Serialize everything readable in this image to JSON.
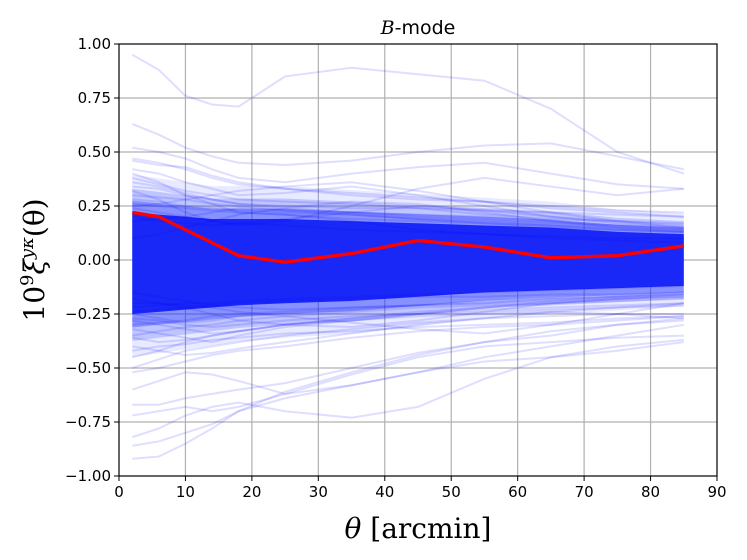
{
  "chart_data": {
    "type": "line",
    "title": "B-mode",
    "title_parts": {
      "var": "B",
      "rest": "-mode"
    },
    "xlabel": "θ [arcmin]",
    "xlabel_parts": {
      "sym": "θ",
      "rest": " [arcmin]"
    },
    "ylabel": "10⁹ξ^{yκ}(θ)",
    "ylabel_parts": {
      "base": "10",
      "exp": "9",
      "xi": "ξ",
      "sup": "yκ",
      "arg": "(θ)"
    },
    "xlim": [
      0,
      90
    ],
    "ylim": [
      -1.0,
      1.0
    ],
    "grid": true,
    "x_ticks": [
      0,
      10,
      20,
      30,
      40,
      50,
      60,
      70,
      80,
      90
    ],
    "x_tick_labels": [
      "0",
      "10",
      "20",
      "30",
      "40",
      "50",
      "60",
      "70",
      "80",
      "90"
    ],
    "y_ticks": [
      -1.0,
      -0.75,
      -0.5,
      -0.25,
      0.0,
      0.25,
      0.5,
      0.75,
      1.0
    ],
    "y_tick_labels": [
      "−1.00",
      "−0.75",
      "−0.50",
      "−0.25",
      "0.00",
      "0.25",
      "0.50",
      "0.75",
      "1.00"
    ],
    "x": [
      2,
      6,
      10,
      14,
      18,
      25,
      35,
      45,
      55,
      65,
      75,
      85
    ],
    "band_envelope": {
      "upper": [
        0.22,
        0.21,
        0.2,
        0.19,
        0.19,
        0.19,
        0.18,
        0.17,
        0.16,
        0.15,
        0.13,
        0.12
      ],
      "lower": [
        -0.25,
        -0.24,
        -0.23,
        -0.22,
        -0.21,
        -0.2,
        -0.19,
        -0.17,
        -0.15,
        -0.14,
        -0.13,
        -0.12
      ]
    },
    "series": [
      {
        "role": "mean",
        "color": "#ff0000",
        "values": [
          0.22,
          0.2,
          0.14,
          0.08,
          0.02,
          -0.01,
          0.03,
          0.09,
          0.06,
          0.01,
          0.02,
          0.065
        ]
      }
    ],
    "background_lines": [
      [
        0.95,
        0.88,
        0.76,
        0.72,
        0.71,
        0.85,
        0.89,
        0.86,
        0.83,
        0.7,
        0.5,
        0.4
      ],
      [
        0.63,
        0.58,
        0.52,
        0.48,
        0.45,
        0.44,
        0.46,
        0.5,
        0.53,
        0.54,
        0.48,
        0.42
      ],
      [
        0.52,
        0.5,
        0.47,
        0.42,
        0.38,
        0.36,
        0.4,
        0.43,
        0.45,
        0.4,
        0.35,
        0.33
      ],
      [
        0.46,
        0.44,
        0.43,
        0.39,
        0.36,
        0.33,
        0.3,
        0.28,
        0.27,
        0.25,
        0.23,
        0.22
      ],
      [
        0.42,
        0.4,
        0.36,
        0.33,
        0.3,
        0.31,
        0.34,
        0.3,
        0.25,
        0.2,
        0.18,
        0.16
      ],
      [
        0.38,
        0.35,
        0.32,
        0.3,
        0.28,
        0.27,
        0.26,
        0.24,
        0.21,
        0.19,
        0.18,
        0.17
      ],
      [
        0.34,
        0.33,
        0.3,
        0.28,
        0.26,
        0.24,
        0.22,
        0.21,
        0.2,
        0.18,
        0.16,
        0.15
      ],
      [
        0.3,
        0.29,
        0.28,
        0.26,
        0.25,
        0.23,
        0.22,
        0.2,
        0.19,
        0.17,
        0.16,
        0.14
      ],
      [
        0.32,
        0.28,
        0.22,
        0.18,
        0.16,
        0.18,
        0.25,
        0.33,
        0.38,
        0.34,
        0.3,
        0.33
      ],
      [
        0.28,
        0.27,
        0.25,
        0.24,
        0.23,
        0.22,
        0.21,
        0.19,
        0.18,
        0.16,
        0.15,
        0.14
      ],
      [
        0.26,
        0.25,
        0.24,
        0.23,
        0.22,
        0.21,
        0.19,
        0.18,
        0.17,
        0.16,
        0.14,
        0.13
      ],
      [
        0.4,
        0.36,
        0.3,
        0.26,
        0.22,
        0.21,
        0.18,
        0.14,
        0.12,
        0.1,
        0.09,
        0.08
      ],
      [
        0.25,
        0.26,
        0.28,
        0.3,
        0.32,
        0.34,
        0.36,
        0.32,
        0.27,
        0.22,
        0.18,
        0.15
      ],
      [
        0.24,
        0.22,
        0.2,
        0.18,
        0.17,
        0.16,
        0.14,
        0.13,
        0.12,
        0.11,
        0.1,
        0.1
      ],
      [
        0.1,
        0.12,
        0.15,
        0.18,
        0.21,
        0.24,
        0.27,
        0.26,
        0.22,
        0.18,
        0.15,
        0.13
      ],
      [
        -0.25,
        -0.27,
        -0.29,
        -0.28,
        -0.26,
        -0.25,
        -0.23,
        -0.21,
        -0.2,
        -0.18,
        -0.17,
        -0.16
      ],
      [
        -0.28,
        -0.3,
        -0.32,
        -0.34,
        -0.33,
        -0.3,
        -0.27,
        -0.24,
        -0.22,
        -0.2,
        -0.18,
        -0.17
      ],
      [
        -0.32,
        -0.34,
        -0.36,
        -0.38,
        -0.35,
        -0.31,
        -0.28,
        -0.25,
        -0.22,
        -0.19,
        -0.17,
        -0.15
      ],
      [
        -0.36,
        -0.38,
        -0.37,
        -0.35,
        -0.33,
        -0.3,
        -0.27,
        -0.25,
        -0.23,
        -0.22,
        -0.21,
        -0.2
      ],
      [
        -0.4,
        -0.42,
        -0.44,
        -0.43,
        -0.41,
        -0.38,
        -0.34,
        -0.3,
        -0.27,
        -0.24,
        -0.22,
        -0.2
      ],
      [
        -0.3,
        -0.29,
        -0.28,
        -0.26,
        -0.25,
        -0.24,
        -0.22,
        -0.21,
        -0.2,
        -0.19,
        -0.18,
        -0.17
      ],
      [
        -0.45,
        -0.42,
        -0.38,
        -0.35,
        -0.33,
        -0.3,
        -0.28,
        -0.26,
        -0.25,
        -0.24,
        -0.25,
        -0.27
      ],
      [
        -0.52,
        -0.5,
        -0.47,
        -0.44,
        -0.42,
        -0.4,
        -0.36,
        -0.33,
        -0.31,
        -0.3,
        -0.28,
        -0.26
      ],
      [
        -0.6,
        -0.56,
        -0.52,
        -0.53,
        -0.56,
        -0.62,
        -0.53,
        -0.45,
        -0.4,
        -0.38,
        -0.36,
        -0.35
      ],
      [
        -0.67,
        -0.67,
        -0.64,
        -0.62,
        -0.6,
        -0.57,
        -0.5,
        -0.43,
        -0.38,
        -0.33,
        -0.3,
        -0.28
      ],
      [
        -0.72,
        -0.7,
        -0.68,
        -0.7,
        -0.68,
        -0.62,
        -0.58,
        -0.52,
        -0.45,
        -0.4,
        -0.35,
        -0.3
      ],
      [
        -0.82,
        -0.78,
        -0.72,
        -0.68,
        -0.66,
        -0.7,
        -0.73,
        -0.68,
        -0.55,
        -0.45,
        -0.4,
        -0.37
      ],
      [
        -0.92,
        -0.91,
        -0.85,
        -0.78,
        -0.7,
        -0.64,
        -0.58,
        -0.52,
        -0.47,
        -0.45,
        -0.42,
        -0.38
      ],
      [
        -0.86,
        -0.84,
        -0.8,
        -0.76,
        -0.7,
        -0.61,
        -0.52,
        -0.44,
        -0.38,
        -0.35,
        -0.3,
        -0.27
      ],
      [
        -0.22,
        -0.21,
        -0.2,
        -0.2,
        -0.19,
        -0.18,
        -0.17,
        -0.16,
        -0.15,
        -0.14,
        -0.13,
        -0.12
      ],
      [
        -0.2,
        -0.2,
        -0.21,
        -0.22,
        -0.24,
        -0.26,
        -0.29,
        -0.32,
        -0.34,
        -0.3,
        -0.25,
        -0.2
      ],
      [
        -0.24,
        -0.23,
        -0.22,
        -0.21,
        -0.2,
        -0.19,
        -0.18,
        -0.17,
        -0.17,
        -0.16,
        -0.16,
        -0.15
      ],
      [
        -0.27,
        -0.28,
        -0.3,
        -0.31,
        -0.3,
        -0.28,
        -0.26,
        -0.25,
        -0.24,
        -0.23,
        -0.22,
        -0.21
      ],
      [
        -0.35,
        -0.33,
        -0.31,
        -0.3,
        -0.28,
        -0.26,
        -0.24,
        -0.22,
        -0.21,
        -0.2,
        -0.19,
        -0.18
      ],
      [
        -0.18,
        -0.2,
        -0.22,
        -0.25,
        -0.28,
        -0.3,
        -0.31,
        -0.28,
        -0.24,
        -0.2,
        -0.18,
        -0.16
      ],
      [
        0.18,
        0.19,
        0.2,
        0.22,
        0.24,
        0.23,
        0.21,
        0.19,
        0.17,
        0.15,
        0.14,
        0.13
      ],
      [
        0.2,
        0.18,
        0.17,
        0.16,
        0.17,
        0.19,
        0.22,
        0.25,
        0.23,
        0.2,
        0.17,
        0.15
      ],
      [
        -0.15,
        -0.17,
        -0.19,
        -0.21,
        -0.22,
        -0.23,
        -0.22,
        -0.21,
        -0.19,
        -0.18,
        -0.17,
        -0.16
      ],
      [
        0.47,
        0.45,
        0.42,
        0.38,
        0.35,
        0.33,
        0.31,
        0.29,
        0.27,
        0.24,
        0.22,
        0.2
      ],
      [
        0.36,
        0.34,
        0.31,
        0.28,
        0.26,
        0.25,
        0.24,
        0.24,
        0.23,
        0.22,
        0.21,
        0.2
      ],
      [
        -0.42,
        -0.4,
        -0.39,
        -0.37,
        -0.36,
        -0.34,
        -0.33,
        -0.31,
        -0.3,
        -0.29,
        -0.27,
        -0.26
      ],
      [
        -0.5,
        -0.46,
        -0.42,
        -0.4,
        -0.38,
        -0.35,
        -0.32,
        -0.29,
        -0.27,
        -0.26,
        -0.25,
        -0.25
      ]
    ]
  }
}
